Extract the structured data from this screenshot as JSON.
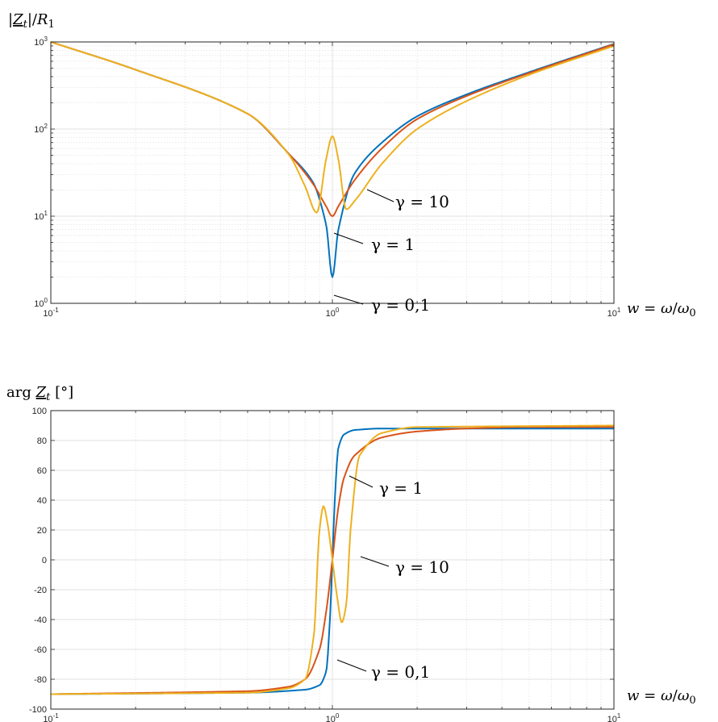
{
  "chart_data": [
    {
      "type": "line",
      "ylabel": "|Z_t|/R_1",
      "xlabel": "w = ω/ω_0",
      "xscale": "log",
      "yscale": "log",
      "xlim": [
        0.1,
        10
      ],
      "ylim": [
        1,
        1000
      ],
      "grid": true,
      "x_tick_labels": [
        {
          "base": "10",
          "exp": "-1"
        },
        {
          "base": "10",
          "exp": "0"
        },
        {
          "base": "10",
          "exp": "1"
        }
      ],
      "y_tick_labels": [
        {
          "base": "10",
          "exp": "0"
        },
        {
          "base": "10",
          "exp": "1"
        },
        {
          "base": "10",
          "exp": "2"
        },
        {
          "base": "10",
          "exp": "3"
        }
      ],
      "series": [
        {
          "name": "γ = 0,1",
          "color": "#0072BD",
          "x": [
            0.1,
            0.2,
            0.5,
            0.7,
            0.85,
            0.95,
            1.0,
            1.05,
            1.2,
            1.5,
            2,
            3,
            5,
            10
          ],
          "values": [
            1000,
            480,
            150,
            52,
            25,
            8,
            2,
            7,
            31,
            70,
            140,
            250,
            450,
            950
          ]
        },
        {
          "name": "γ = 1",
          "color": "#D95319",
          "x": [
            0.1,
            0.2,
            0.5,
            0.7,
            0.85,
            0.95,
            1.0,
            1.05,
            1.2,
            1.5,
            2,
            3,
            5,
            10
          ],
          "values": [
            1000,
            480,
            150,
            52,
            24,
            13,
            10,
            13,
            26,
            60,
            130,
            240,
            440,
            940
          ]
        },
        {
          "name": "γ = 10",
          "color": "#EDB120",
          "x": [
            0.1,
            0.2,
            0.5,
            0.7,
            0.8,
            0.88,
            0.95,
            1.0,
            1.05,
            1.12,
            1.2,
            1.5,
            2,
            3,
            5,
            10
          ],
          "values": [
            1000,
            480,
            150,
            51,
            22,
            11,
            45,
            83,
            45,
            12,
            15,
            40,
            100,
            210,
            420,
            900
          ]
        }
      ],
      "annotations": [
        "γ = 10",
        "γ = 1",
        "γ = 0,1"
      ]
    },
    {
      "type": "line",
      "ylabel": "arg Z_t [°]",
      "xlabel": "w = ω/ω_0",
      "xscale": "log",
      "xlim": [
        0.1,
        10
      ],
      "ylim": [
        -100,
        100
      ],
      "grid": true,
      "x_tick_labels": [
        {
          "base": "10",
          "exp": "-1"
        },
        {
          "base": "10",
          "exp": "0"
        },
        {
          "base": "10",
          "exp": "1"
        }
      ],
      "y_tick_labels": [
        "100",
        "80",
        "60",
        "40",
        "20",
        "0",
        "-20",
        "-40",
        "-60",
        "-80",
        "-100"
      ],
      "series": [
        {
          "name": "γ = 0,1",
          "color": "#0072BD",
          "x": [
            0.1,
            0.5,
            0.8,
            0.9,
            0.95,
            0.98,
            1.0,
            1.02,
            1.05,
            1.1,
            1.2,
            1.5,
            2,
            10
          ],
          "values": [
            -90,
            -89,
            -87,
            -84,
            -75,
            -40,
            0,
            40,
            75,
            84,
            87,
            88,
            88,
            88
          ]
        },
        {
          "name": "γ = 1",
          "color": "#D95319",
          "x": [
            0.1,
            0.5,
            0.7,
            0.8,
            0.9,
            0.95,
            1.0,
            1.05,
            1.1,
            1.2,
            1.5,
            2,
            3,
            5,
            10
          ],
          "values": [
            -90,
            -88,
            -85,
            -80,
            -60,
            -35,
            0,
            35,
            55,
            70,
            82,
            86,
            88,
            89,
            89
          ]
        },
        {
          "name": "γ = 10",
          "color": "#EDB120",
          "x": [
            0.1,
            0.5,
            0.7,
            0.8,
            0.86,
            0.9,
            0.93,
            0.96,
            1.0,
            1.04,
            1.08,
            1.12,
            1.16,
            1.25,
            1.5,
            2,
            10
          ],
          "values": [
            -90,
            -89,
            -86,
            -80,
            -50,
            20,
            36,
            25,
            0,
            -25,
            -42,
            -30,
            20,
            70,
            85,
            89,
            90
          ]
        }
      ],
      "annotations": [
        "γ = 1",
        "γ = 10",
        "γ = 0,1"
      ]
    }
  ]
}
